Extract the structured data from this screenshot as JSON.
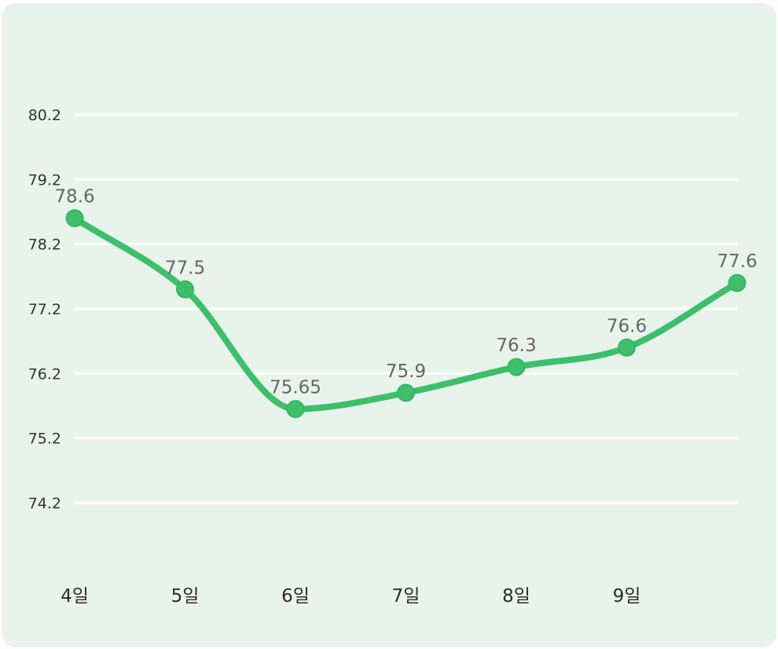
{
  "chart_data": {
    "type": "line",
    "title": "",
    "xlabel": "",
    "ylabel": "",
    "categories": [
      "4일",
      "5일",
      "6일",
      "7일",
      "8일",
      "9일",
      ""
    ],
    "series": [
      {
        "name": "",
        "values": [
          78.6,
          77.5,
          75.65,
          75.9,
          76.3,
          76.6,
          77.6
        ]
      }
    ],
    "data_labels": [
      "78.6",
      "77.5",
      "75.65",
      "75.9",
      "76.3",
      "76.6",
      "77.6"
    ],
    "y_ticks": [
      "74.2",
      "75.2",
      "76.2",
      "77.2",
      "78.2",
      "79.2",
      "80.2"
    ],
    "ylim": [
      74.2,
      80.2
    ],
    "grid": true,
    "legend": "none",
    "colors": {
      "line": "#3dbf6b",
      "marker": "#3dbf6b",
      "grid": "#ffffff",
      "background": "#e8f3ec"
    }
  }
}
